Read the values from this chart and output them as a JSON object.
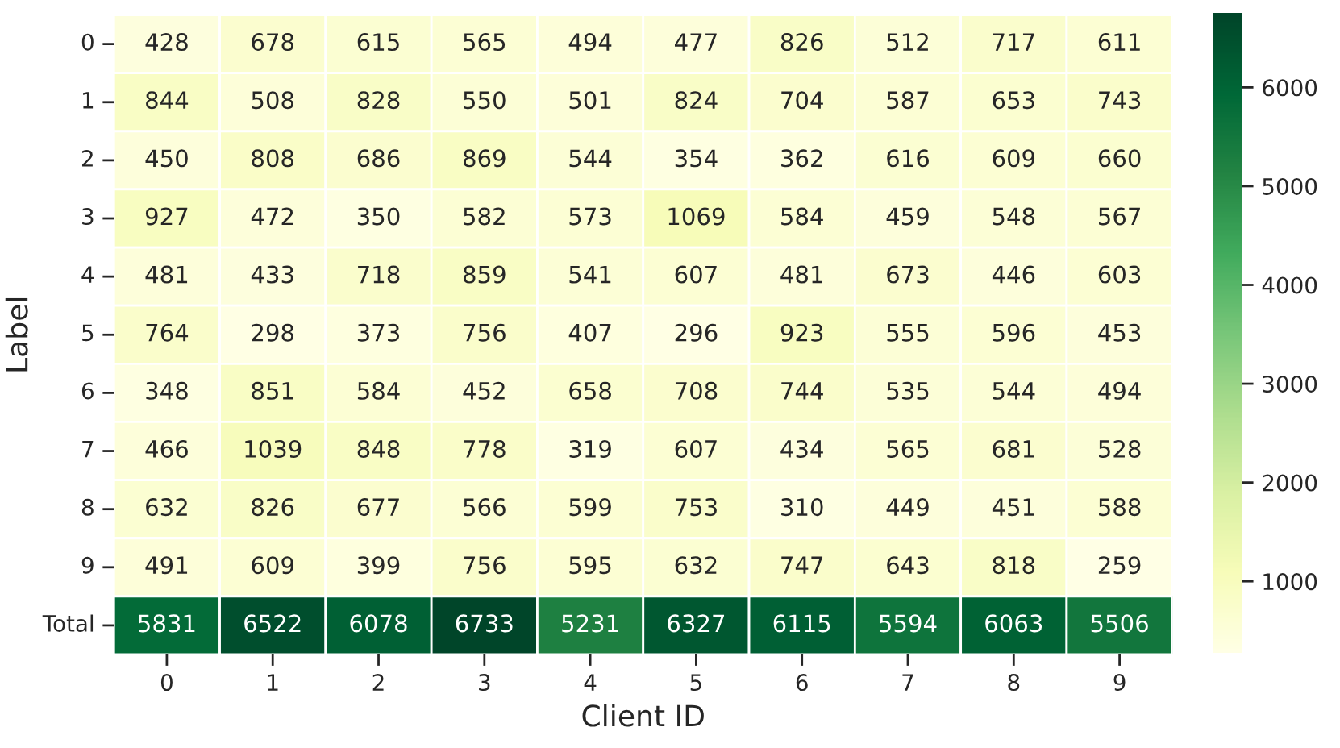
{
  "chart_data": {
    "type": "heatmap",
    "xlabel": "Client ID",
    "ylabel": "Label",
    "categories": [
      "0",
      "1",
      "2",
      "3",
      "4",
      "5",
      "6",
      "7",
      "8",
      "9"
    ],
    "y_categories": [
      "0",
      "1",
      "2",
      "3",
      "4",
      "5",
      "6",
      "7",
      "8",
      "9",
      "Total"
    ],
    "cells": [
      [
        428,
        678,
        615,
        565,
        494,
        477,
        826,
        512,
        717,
        611
      ],
      [
        844,
        508,
        828,
        550,
        501,
        824,
        704,
        587,
        653,
        743
      ],
      [
        450,
        808,
        686,
        869,
        544,
        354,
        362,
        616,
        609,
        660
      ],
      [
        927,
        472,
        350,
        582,
        573,
        1069,
        584,
        459,
        548,
        567
      ],
      [
        481,
        433,
        718,
        859,
        541,
        607,
        481,
        673,
        446,
        603
      ],
      [
        764,
        298,
        373,
        756,
        407,
        296,
        923,
        555,
        596,
        453
      ],
      [
        348,
        851,
        584,
        452,
        658,
        708,
        744,
        535,
        544,
        494
      ],
      [
        466,
        1039,
        848,
        778,
        319,
        607,
        434,
        565,
        681,
        528
      ],
      [
        632,
        826,
        677,
        566,
        599,
        753,
        310,
        449,
        451,
        588
      ],
      [
        491,
        609,
        399,
        756,
        595,
        632,
        747,
        643,
        818,
        259
      ],
      [
        5831,
        6522,
        6078,
        6733,
        5231,
        6327,
        6115,
        5594,
        6063,
        5506
      ]
    ],
    "data_labels": true,
    "clim": [
      259,
      6733
    ],
    "cticks": [
      1000,
      2000,
      3000,
      4000,
      5000,
      6000
    ]
  }
}
